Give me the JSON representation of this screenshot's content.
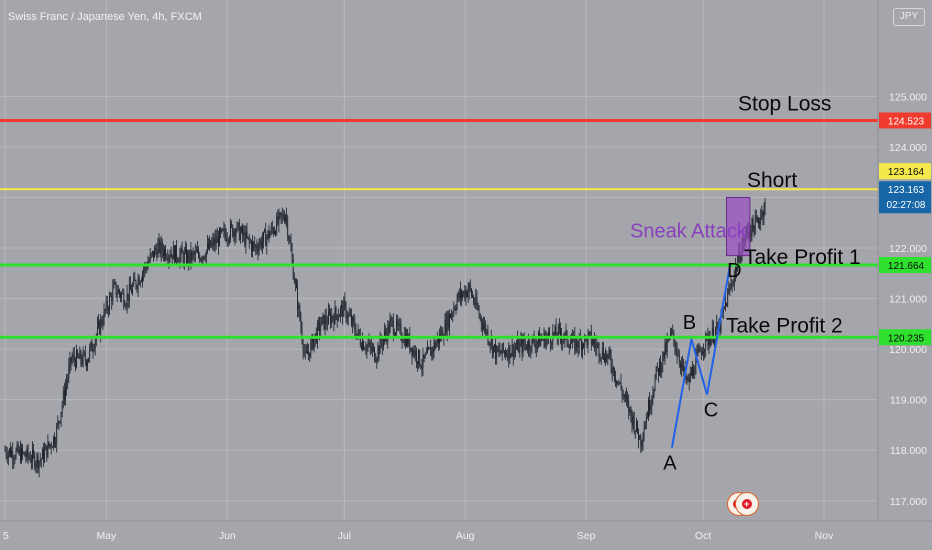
{
  "symbol": {
    "title": "Swiss Franc / Japanese Yen, 4h, FXCM",
    "currency": "JPY"
  },
  "colors": {
    "background": "#a5a6ab",
    "grid": "#b7b8bd",
    "candle": "#1b1e28",
    "stop_loss": "#f03a2e",
    "entry": "#f4e84a",
    "take_profit": "#2fe02f",
    "pattern": "#2163e8",
    "zone_fill": "#9a4fc2",
    "zone_text": "#8a3fbf",
    "current_price": "#1666a8"
  },
  "chart_data": {
    "type": "line",
    "title": "Swiss Franc / Japanese Yen, 4h, FXCM",
    "xlabel": "",
    "ylabel": "",
    "x_ticks": [
      "5",
      "May",
      "Jun",
      "Jul",
      "Aug",
      "Sep",
      "Oct",
      "Nov"
    ],
    "y_ticks": [
      117.0,
      118.0,
      119.0,
      120.0,
      121.0,
      122.0,
      123.0,
      124.0,
      125.0
    ],
    "ylim": [
      116.6,
      126.1
    ],
    "grid": true,
    "price_series": {
      "dates": [
        "2021-04-05",
        "2021-04-10",
        "2021-04-14",
        "2021-04-18",
        "2021-04-22",
        "2021-04-26",
        "2021-04-30",
        "2021-05-03",
        "2021-05-06",
        "2021-05-10",
        "2021-05-14",
        "2021-05-18",
        "2021-05-22",
        "2021-05-26",
        "2021-05-30",
        "2021-06-03",
        "2021-06-08",
        "2021-06-12",
        "2021-06-16",
        "2021-06-18",
        "2021-06-21",
        "2021-06-25",
        "2021-07-01",
        "2021-07-05",
        "2021-07-09",
        "2021-07-13",
        "2021-07-17",
        "2021-07-21",
        "2021-07-26",
        "2021-07-30",
        "2021-08-02",
        "2021-08-05",
        "2021-08-09",
        "2021-08-13",
        "2021-08-17",
        "2021-08-21",
        "2021-08-25",
        "2021-08-29",
        "2021-09-02",
        "2021-09-07",
        "2021-09-11",
        "2021-09-15",
        "2021-09-19",
        "2021-09-23",
        "2021-09-27",
        "2021-10-01",
        "2021-10-05",
        "2021-10-09",
        "2021-10-12",
        "2021-10-15",
        "2021-10-17"
      ],
      "values": [
        118.0,
        117.9,
        117.8,
        118.3,
        119.8,
        119.8,
        120.6,
        121.2,
        121.0,
        121.5,
        122.0,
        121.9,
        121.8,
        121.9,
        122.2,
        122.4,
        122.0,
        122.3,
        122.7,
        121.5,
        119.8,
        120.5,
        120.8,
        120.2,
        119.9,
        120.5,
        120.2,
        119.7,
        120.3,
        121.0,
        121.2,
        120.6,
        119.9,
        120.0,
        120.1,
        120.2,
        120.3,
        120.1,
        120.2,
        119.8,
        119.0,
        118.2,
        119.5,
        120.3,
        119.3,
        120.1,
        120.4,
        121.5,
        122.3,
        122.5,
        122.9
      ]
    },
    "horizontal_levels": [
      {
        "label": "Stop Loss",
        "price": 124.523,
        "price_label": "124.523",
        "color": "#f03a2e"
      },
      {
        "label": "Short",
        "price": 123.164,
        "price_label": "123.164",
        "color": "#f4e84a"
      },
      {
        "label": "Take Profit 1",
        "price": 121.664,
        "price_label": "121.664",
        "color": "#2fe02f"
      },
      {
        "label": "Take Profit 2",
        "price": 120.235,
        "price_label": "120.235",
        "color": "#2fe02f"
      }
    ],
    "current_price": {
      "price": 123.163,
      "price_label": "123.163",
      "countdown": "02:27:08"
    },
    "pattern_points": [
      {
        "label": "A",
        "date": "2021-09-23",
        "price": 118.05
      },
      {
        "label": "B",
        "date": "2021-09-28",
        "price": 120.2
      },
      {
        "label": "C",
        "date": "2021-10-02",
        "price": 119.1
      },
      {
        "label": "D",
        "date": "2021-10-08",
        "price": 121.7
      }
    ],
    "zone": {
      "label": "Sneak Attack",
      "date_from": "2021-10-07",
      "date_to": "2021-10-13",
      "price_low": 121.85,
      "price_high": 123.0
    }
  }
}
